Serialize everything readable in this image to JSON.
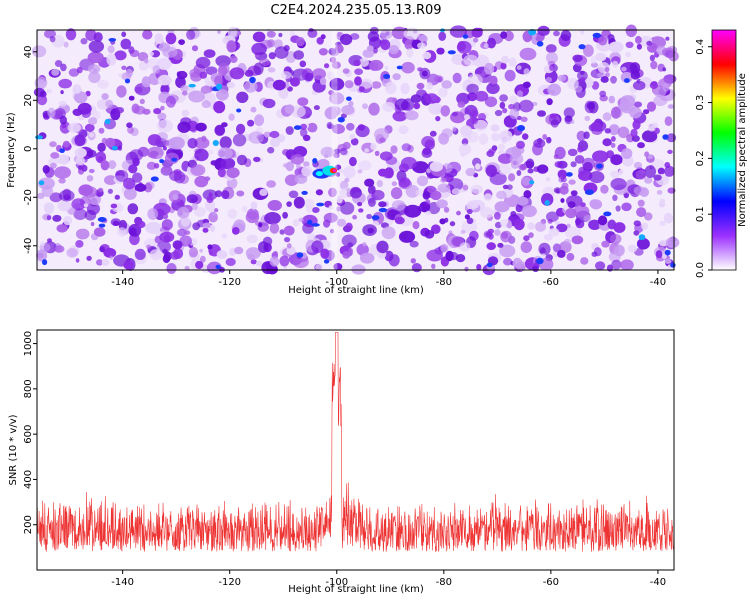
{
  "title": "C2E4.2024.235.05.13.R09",
  "chart_data": [
    {
      "type": "heatmap",
      "xlabel": "Height of straight line (km)",
      "ylabel": "Frequency (Hz)",
      "xlim": [
        -156,
        -37
      ],
      "ylim": [
        -50,
        49
      ],
      "x_ticks": [
        -140,
        -120,
        -100,
        -80,
        -60,
        -40
      ],
      "y_ticks": [
        -40,
        -20,
        0,
        20,
        40
      ],
      "colorbar": {
        "label": "Normalized spectral amplitude",
        "range": [
          0,
          0.43
        ],
        "ticks": [
          0.0,
          0.1,
          0.2,
          0.3,
          0.4
        ],
        "tick_labels": [
          "0.0",
          "0.1",
          "0.2",
          "0.3",
          "0.4"
        ],
        "colormap": [
          "#ffffff",
          "#9b30ff",
          "#0000ff",
          "#00ffff",
          "#00ff00",
          "#ffff00",
          "#ff0000",
          "#ff00ff"
        ]
      },
      "peak": {
        "x": -101,
        "y": -9,
        "amplitude": 0.41
      }
    },
    {
      "type": "line",
      "xlabel": "Height of straight line (km)",
      "ylabel": "SNR (10 * v/v)",
      "xlim": [
        -156,
        -37
      ],
      "ylim": [
        0,
        1060
      ],
      "x_ticks": [
        -140,
        -120,
        -100,
        -80,
        -60,
        -40
      ],
      "y_ticks": [
        200,
        400,
        600,
        800,
        1000
      ],
      "color": "#ee3333",
      "baseline_range": [
        80,
        320
      ],
      "peak": {
        "x": -100,
        "y": 1050
      }
    }
  ]
}
